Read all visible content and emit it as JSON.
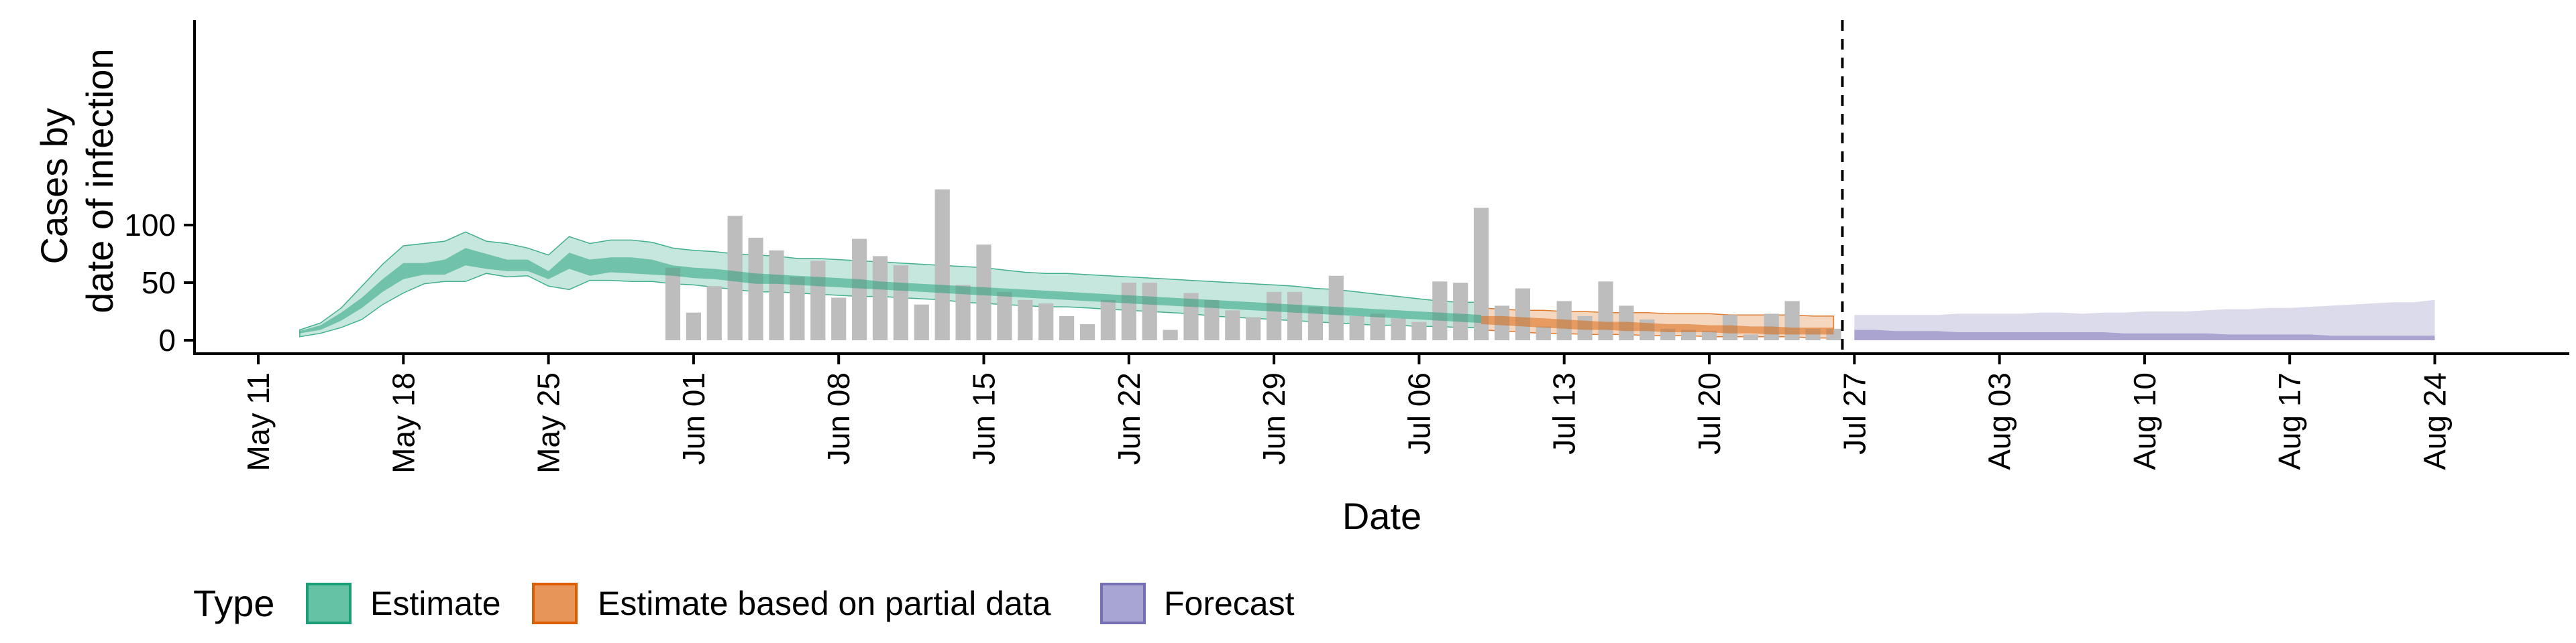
{
  "chart_data": {
    "type": "area",
    "xlabel": "Date",
    "ylabel_lines": [
      "Cases by",
      "date of infection"
    ],
    "ylim": [
      -7,
      138
    ],
    "y_ticks": [
      0,
      50,
      100
    ],
    "xlim": [
      "2020-05-06",
      "2020-08-29"
    ],
    "x_ticks": [
      {
        "date": "2020-05-11",
        "label": "May 11"
      },
      {
        "date": "2020-05-18",
        "label": "May 18"
      },
      {
        "date": "2020-05-25",
        "label": "May 25"
      },
      {
        "date": "2020-06-01",
        "label": "Jun 01"
      },
      {
        "date": "2020-06-08",
        "label": "Jun 08"
      },
      {
        "date": "2020-06-15",
        "label": "Jun 15"
      },
      {
        "date": "2020-06-22",
        "label": "Jun 22"
      },
      {
        "date": "2020-06-29",
        "label": "Jun 29"
      },
      {
        "date": "2020-07-06",
        "label": "Jul 06"
      },
      {
        "date": "2020-07-13",
        "label": "Jul 13"
      },
      {
        "date": "2020-07-20",
        "label": "Jul 20"
      },
      {
        "date": "2020-07-27",
        "label": "Jul 27"
      },
      {
        "date": "2020-08-03",
        "label": "Aug 03"
      },
      {
        "date": "2020-08-10",
        "label": "Aug 10"
      },
      {
        "date": "2020-08-17",
        "label": "Aug 17"
      },
      {
        "date": "2020-08-24",
        "label": "Aug 24"
      }
    ],
    "forecast_date": "2020-07-26",
    "grid": false,
    "legend": {
      "position": "bottom-left",
      "title": "Type",
      "items": [
        {
          "label": "Estimate",
          "fill": "#66c2a5",
          "stroke": "#1b9e77"
        },
        {
          "label": "Estimate based on partial data",
          "fill": "#e8955a",
          "stroke": "#d95f02"
        },
        {
          "label": "Forecast",
          "fill": "#a8a5d2",
          "stroke": "#7570b3"
        }
      ]
    },
    "colors": {
      "observed": "#bdbdbd",
      "estimate": "#1b9e77",
      "partial": "#d95f02",
      "forecast": "#7570b3",
      "forecast_line": "#000000"
    },
    "observed_cases": {
      "start": "2020-05-31",
      "values": [
        63,
        24,
        47,
        108,
        89,
        78,
        55,
        69,
        37,
        88,
        73,
        65,
        31,
        131,
        48,
        83,
        42,
        35,
        32,
        21,
        14,
        35,
        50,
        50,
        9,
        41,
        35,
        26,
        20,
        42,
        42,
        29,
        56,
        21,
        23,
        19,
        16,
        51,
        50,
        115,
        30,
        45,
        12,
        34,
        21,
        51,
        30,
        18,
        10,
        9,
        8,
        22,
        5,
        23,
        34,
        10,
        10
      ]
    },
    "series": [
      {
        "name": "Estimate",
        "start": "2020-05-13",
        "lower_90": [
          3,
          6,
          11,
          18,
          31,
          41,
          49,
          51,
          51,
          58,
          55,
          56,
          47,
          44,
          52,
          52,
          51,
          51,
          49,
          48,
          46,
          44,
          42,
          42,
          41,
          40,
          39,
          38,
          38,
          37,
          36,
          35,
          33,
          32,
          31,
          30,
          29,
          29,
          28,
          27,
          26,
          25,
          24,
          23,
          21,
          20,
          19,
          18,
          17,
          16,
          15,
          14,
          13,
          13,
          12,
          12,
          11,
          11
        ],
        "upper_90": [
          9,
          15,
          28,
          47,
          66,
          82,
          84,
          86,
          94,
          86,
          84,
          80,
          74,
          90,
          84,
          87,
          87,
          85,
          80,
          78,
          77,
          75,
          74,
          73,
          71,
          71,
          70,
          69,
          68,
          67,
          66,
          65,
          64,
          63,
          61,
          59,
          58,
          58,
          57,
          56,
          55,
          54,
          53,
          52,
          51,
          50,
          49,
          48,
          47,
          45,
          44,
          42,
          40,
          38,
          36,
          34,
          33,
          33
        ],
        "lower_50": [
          6,
          9,
          17,
          28,
          42,
          53,
          57,
          57,
          65,
          62,
          60,
          60,
          53,
          62,
          56,
          59,
          58,
          57,
          56,
          54,
          53,
          51,
          49,
          49,
          48,
          47,
          46,
          45,
          44,
          43,
          42,
          41,
          40,
          39,
          38,
          37,
          36,
          35,
          34,
          33,
          32,
          31,
          30,
          29,
          28,
          27,
          26,
          25,
          24,
          23,
          22,
          21,
          20,
          19,
          18,
          17,
          16,
          15
        ],
        "upper_50": [
          8,
          13,
          24,
          37,
          53,
          67,
          67,
          70,
          80,
          75,
          70,
          70,
          60,
          76,
          70,
          72,
          72,
          70,
          65,
          63,
          62,
          60,
          58,
          57,
          56,
          55,
          54,
          53,
          51,
          50,
          49,
          48,
          47,
          46,
          45,
          44,
          43,
          42,
          41,
          40,
          39,
          38,
          37,
          36,
          35,
          34,
          33,
          32,
          31,
          30,
          29,
          28,
          27,
          26,
          25,
          24,
          23,
          22
        ]
      },
      {
        "name": "Estimate based on partial data",
        "start": "2020-07-09",
        "lower_90": [
          9,
          8,
          7,
          6,
          6,
          5,
          5,
          5,
          4,
          4,
          4,
          3,
          3,
          3,
          3,
          3,
          2,
          2
        ],
        "upper_90": [
          28,
          27,
          26,
          26,
          25,
          25,
          24,
          24,
          24,
          23,
          23,
          23,
          22,
          22,
          22,
          22,
          21,
          21
        ],
        "lower_50": [
          14,
          13,
          12,
          11,
          10,
          9,
          9,
          8,
          8,
          7,
          7,
          7,
          6,
          6,
          5,
          5,
          5,
          5
        ],
        "upper_50": [
          21,
          21,
          20,
          19,
          18,
          17,
          16,
          16,
          15,
          14,
          14,
          13,
          13,
          12,
          12,
          11,
          11,
          11
        ]
      },
      {
        "name": "Forecast",
        "start": "2020-07-27",
        "lower_90": [
          0,
          0,
          0,
          0,
          0,
          0,
          0,
          0,
          0,
          0,
          0,
          0,
          0,
          0,
          0,
          0,
          0,
          0,
          0,
          0,
          0,
          0,
          0,
          0,
          0,
          0,
          0,
          0,
          0
        ],
        "upper_90": [
          22,
          22,
          22,
          22,
          22,
          23,
          23,
          23,
          23,
          24,
          24,
          23,
          24,
          24,
          25,
          25,
          25,
          26,
          27,
          27,
          28,
          28,
          29,
          30,
          31,
          32,
          33,
          33,
          35
        ],
        "lower_50": [
          0,
          0,
          0,
          0,
          0,
          0,
          0,
          0,
          0,
          0,
          0,
          0,
          0,
          0,
          0,
          0,
          0,
          0,
          0,
          0,
          0,
          0,
          0,
          0,
          0,
          0,
          0,
          0,
          0
        ],
        "upper_50": [
          9,
          9,
          8,
          8,
          8,
          7,
          7,
          7,
          7,
          7,
          7,
          7,
          7,
          6,
          6,
          6,
          6,
          6,
          5,
          5,
          5,
          5,
          5,
          4,
          4,
          4,
          4,
          4,
          4
        ]
      }
    ]
  }
}
